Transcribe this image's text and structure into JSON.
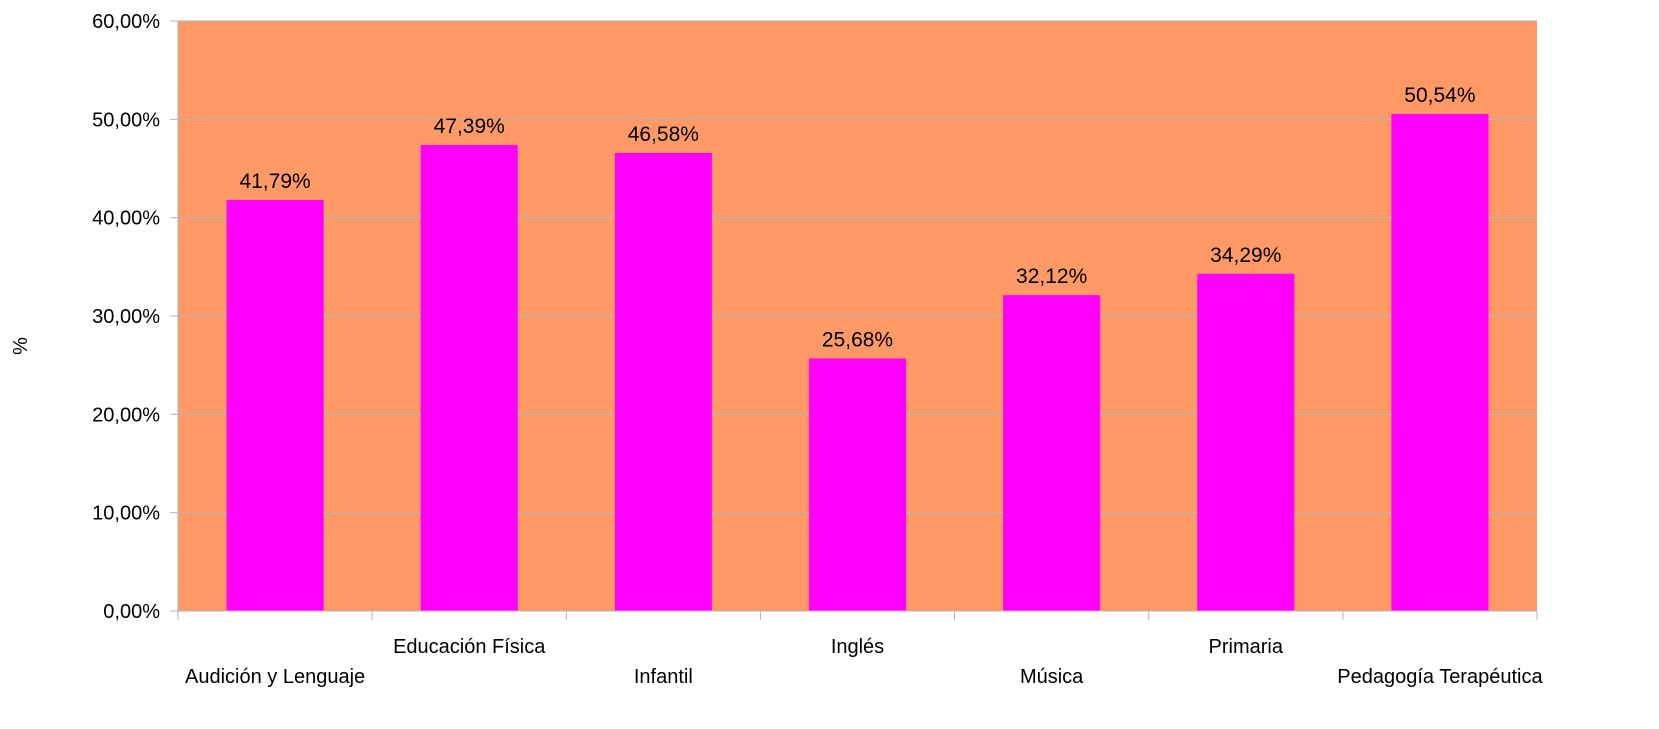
{
  "chart_data": {
    "type": "bar",
    "title": "",
    "xlabel": "",
    "ylabel": "%",
    "ylim": [
      0,
      60
    ],
    "yticks": [
      0,
      10,
      20,
      30,
      40,
      50,
      60
    ],
    "ytick_labels": [
      "0,00%",
      "10,00%",
      "20,00%",
      "30,00%",
      "40,00%",
      "50,00%",
      "60,00%"
    ],
    "categories": [
      "Audición y Lenguaje",
      "Educación Física",
      "Infantil",
      "Inglés",
      "Música",
      "Primaria",
      "Pedagogía Terapéutica"
    ],
    "values": [
      41.79,
      47.39,
      46.58,
      25.68,
      32.12,
      34.29,
      50.54
    ],
    "data_labels": [
      "41,79%",
      "47,39%",
      "46,58%",
      "25,68%",
      "32,12%",
      "34,29%",
      "50,54%"
    ],
    "grid": true,
    "legend": "none",
    "colors": {
      "plot_background": "#ff9966",
      "bar": "#ff00ff",
      "gridline": "#b3b3b3",
      "axis": "#b3b3b3"
    }
  }
}
